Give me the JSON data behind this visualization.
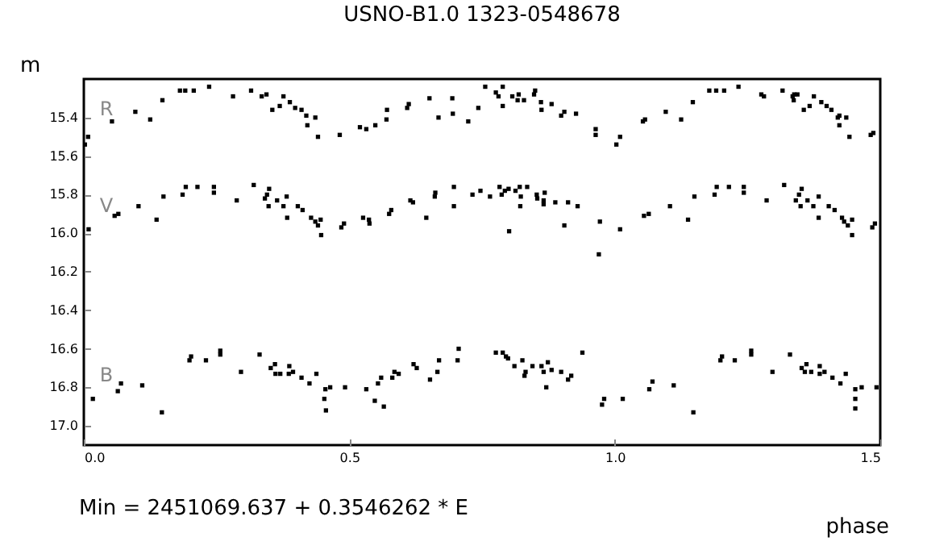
{
  "chart_data": {
    "type": "scatter",
    "title": "USNO-B1.0 1323-0548678",
    "xlabel": "phase",
    "ylabel": "m",
    "annotations": [
      "Min = 2451069.637 + 0.3546262 * E"
    ],
    "marker": "square",
    "grid": false,
    "xlim": [
      0,
      1.5
    ],
    "xticks": [
      {
        "value": 0,
        "label": "0.0"
      },
      0.5,
      {
        "value": 1,
        "label": "1.0"
      },
      1.5
    ],
    "ylim": [
      17.1,
      15.2
    ],
    "yticks": [
      15.4,
      15.6,
      15.8,
      {
        "value": 16,
        "label": "16.0"
      },
      16.2,
      16.4,
      16.6,
      16.8,
      {
        "value": 17,
        "label": "17.0"
      }
    ],
    "series": [
      {
        "name": "R",
        "color": "#000000",
        "x": [
          0.002,
          0.008,
          0.053,
          0.097,
          0.125,
          0.148,
          0.181,
          0.191,
          0.207,
          0.236,
          0.281,
          0.315,
          0.335,
          0.344,
          0.355,
          0.369,
          0.376,
          0.388,
          0.398,
          0.41,
          0.419,
          0.421,
          0.436,
          0.441,
          0.482,
          0.52,
          0.532,
          0.549,
          0.57,
          0.571,
          0.609,
          0.612,
          0.651,
          0.668,
          0.694,
          0.695,
          0.724,
          0.743,
          0.756,
          0.776,
          0.781,
          0.789,
          0.789,
          0.807,
          0.817,
          0.819,
          0.829,
          0.848,
          0.85,
          0.861,
          0.862,
          0.881,
          0.899,
          0.905,
          0.927,
          0.964,
          0.964,
          1.003,
          1.01,
          1.053,
          1.057,
          1.096,
          1.125,
          1.147,
          1.178,
          1.191,
          1.206,
          1.233,
          1.276,
          1.281,
          1.316,
          1.335,
          1.338,
          1.344,
          1.337,
          1.356,
          1.367,
          1.375,
          1.389,
          1.399,
          1.408,
          1.42,
          1.423,
          1.423,
          1.436,
          1.442,
          1.482,
          1.487
        ],
        "values": [
          15.54,
          15.5,
          15.42,
          15.37,
          15.41,
          15.31,
          15.26,
          15.26,
          15.26,
          15.24,
          15.29,
          15.26,
          15.29,
          15.28,
          15.36,
          15.34,
          15.29,
          15.32,
          15.35,
          15.36,
          15.39,
          15.44,
          15.4,
          15.5,
          15.49,
          15.45,
          15.46,
          15.44,
          15.41,
          15.36,
          15.35,
          15.33,
          15.3,
          15.4,
          15.3,
          15.38,
          15.42,
          15.35,
          15.24,
          15.27,
          15.29,
          15.24,
          15.34,
          15.29,
          15.31,
          15.28,
          15.31,
          15.28,
          15.26,
          15.32,
          15.36,
          15.33,
          15.39,
          15.37,
          15.38,
          15.46,
          15.49,
          15.54,
          15.5,
          15.42,
          15.41,
          15.37,
          15.41,
          15.32,
          15.26,
          15.26,
          15.26,
          15.24,
          15.28,
          15.29,
          15.26,
          15.29,
          15.28,
          15.28,
          15.31,
          15.36,
          15.34,
          15.29,
          15.32,
          15.34,
          15.36,
          15.4,
          15.39,
          15.44,
          15.4,
          15.5,
          15.49,
          15.48
        ]
      },
      {
        "name": "V",
        "color": "#000000",
        "x": [
          0.009,
          0.058,
          0.065,
          0.103,
          0.137,
          0.15,
          0.186,
          0.192,
          0.214,
          0.245,
          0.245,
          0.288,
          0.32,
          0.341,
          0.345,
          0.349,
          0.348,
          0.364,
          0.376,
          0.382,
          0.383,
          0.403,
          0.412,
          0.428,
          0.436,
          0.441,
          0.446,
          0.447,
          0.485,
          0.49,
          0.526,
          0.537,
          0.538,
          0.575,
          0.579,
          0.615,
          0.62,
          0.645,
          0.661,
          0.662,
          0.697,
          0.697,
          0.732,
          0.747,
          0.765,
          0.783,
          0.787,
          0.793,
          0.801,
          0.8,
          0.813,
          0.821,
          0.823,
          0.822,
          0.835,
          0.853,
          0.854,
          0.866,
          0.868,
          0.866,
          0.888,
          0.912,
          0.905,
          0.93,
          0.972,
          0.97,
          1.01,
          1.055,
          1.064,
          1.104,
          1.138,
          1.15,
          1.188,
          1.192,
          1.215,
          1.243,
          1.243,
          1.286,
          1.319,
          1.341,
          1.347,
          1.352,
          1.35,
          1.363,
          1.374,
          1.384,
          1.384,
          1.403,
          1.414,
          1.428,
          1.432,
          1.439,
          1.447,
          1.447,
          1.485,
          1.49
        ],
        "values": [
          15.98,
          15.91,
          15.9,
          15.86,
          15.93,
          15.81,
          15.8,
          15.76,
          15.76,
          15.76,
          15.79,
          15.83,
          15.75,
          15.82,
          15.8,
          15.77,
          15.86,
          15.83,
          15.86,
          15.81,
          15.92,
          15.86,
          15.88,
          15.92,
          15.94,
          15.96,
          15.93,
          16.01,
          15.97,
          15.95,
          15.92,
          15.93,
          15.95,
          15.9,
          15.88,
          15.83,
          15.84,
          15.92,
          15.81,
          15.79,
          15.76,
          15.86,
          15.8,
          15.78,
          15.81,
          15.76,
          15.8,
          15.78,
          15.99,
          15.77,
          15.78,
          15.76,
          15.81,
          15.86,
          15.76,
          15.8,
          15.82,
          15.83,
          15.79,
          15.85,
          15.84,
          15.84,
          15.96,
          15.86,
          15.94,
          16.11,
          15.98,
          15.91,
          15.9,
          15.86,
          15.93,
          15.81,
          15.8,
          15.76,
          15.76,
          15.76,
          15.79,
          15.83,
          15.75,
          15.83,
          15.8,
          15.77,
          15.86,
          15.83,
          15.86,
          15.81,
          15.92,
          15.86,
          15.88,
          15.92,
          15.94,
          15.96,
          16.01,
          15.93,
          15.97,
          15.95
        ]
      },
      {
        "name": "B",
        "color": "#000000",
        "x": [
          0.017,
          0.064,
          0.07,
          0.11,
          0.147,
          0.199,
          0.202,
          0.23,
          0.257,
          0.257,
          0.296,
          0.331,
          0.352,
          0.36,
          0.361,
          0.37,
          0.387,
          0.386,
          0.394,
          0.41,
          0.425,
          0.438,
          0.453,
          0.455,
          0.456,
          0.464,
          0.492,
          0.532,
          0.548,
          0.554,
          0.56,
          0.565,
          0.581,
          0.585,
          0.593,
          0.621,
          0.627,
          0.652,
          0.666,
          0.669,
          0.704,
          0.706,
          0.776,
          0.789,
          0.795,
          0.799,
          0.811,
          0.826,
          0.832,
          0.83,
          0.845,
          0.862,
          0.866,
          0.874,
          0.871,
          0.881,
          0.899,
          0.912,
          0.918,
          0.939,
          0.976,
          0.98,
          1.015,
          1.065,
          1.071,
          1.111,
          1.148,
          1.199,
          1.202,
          1.226,
          1.257,
          1.257,
          1.297,
          1.33,
          1.352,
          1.361,
          1.358,
          1.37,
          1.386,
          1.386,
          1.395,
          1.41,
          1.425,
          1.435,
          1.453,
          1.453,
          1.453,
          1.465,
          1.493
        ],
        "values": [
          16.86,
          16.82,
          16.78,
          16.79,
          16.93,
          16.66,
          16.64,
          16.66,
          16.61,
          16.63,
          16.72,
          16.63,
          16.7,
          16.68,
          16.73,
          16.73,
          16.69,
          16.73,
          16.72,
          16.75,
          16.78,
          16.73,
          16.86,
          16.81,
          16.92,
          16.8,
          16.8,
          16.81,
          16.87,
          16.78,
          16.75,
          16.9,
          16.75,
          16.72,
          16.73,
          16.68,
          16.7,
          16.76,
          16.72,
          16.66,
          16.66,
          16.6,
          16.62,
          16.62,
          16.64,
          16.65,
          16.69,
          16.66,
          16.72,
          16.74,
          16.69,
          16.69,
          16.72,
          16.67,
          16.8,
          16.71,
          16.72,
          16.76,
          16.74,
          16.62,
          16.89,
          16.86,
          16.86,
          16.81,
          16.77,
          16.79,
          16.93,
          16.66,
          16.64,
          16.66,
          16.61,
          16.63,
          16.72,
          16.63,
          16.7,
          16.68,
          16.72,
          16.72,
          16.69,
          16.73,
          16.72,
          16.75,
          16.78,
          16.73,
          16.81,
          16.86,
          16.91,
          16.8,
          16.8
        ]
      }
    ]
  }
}
